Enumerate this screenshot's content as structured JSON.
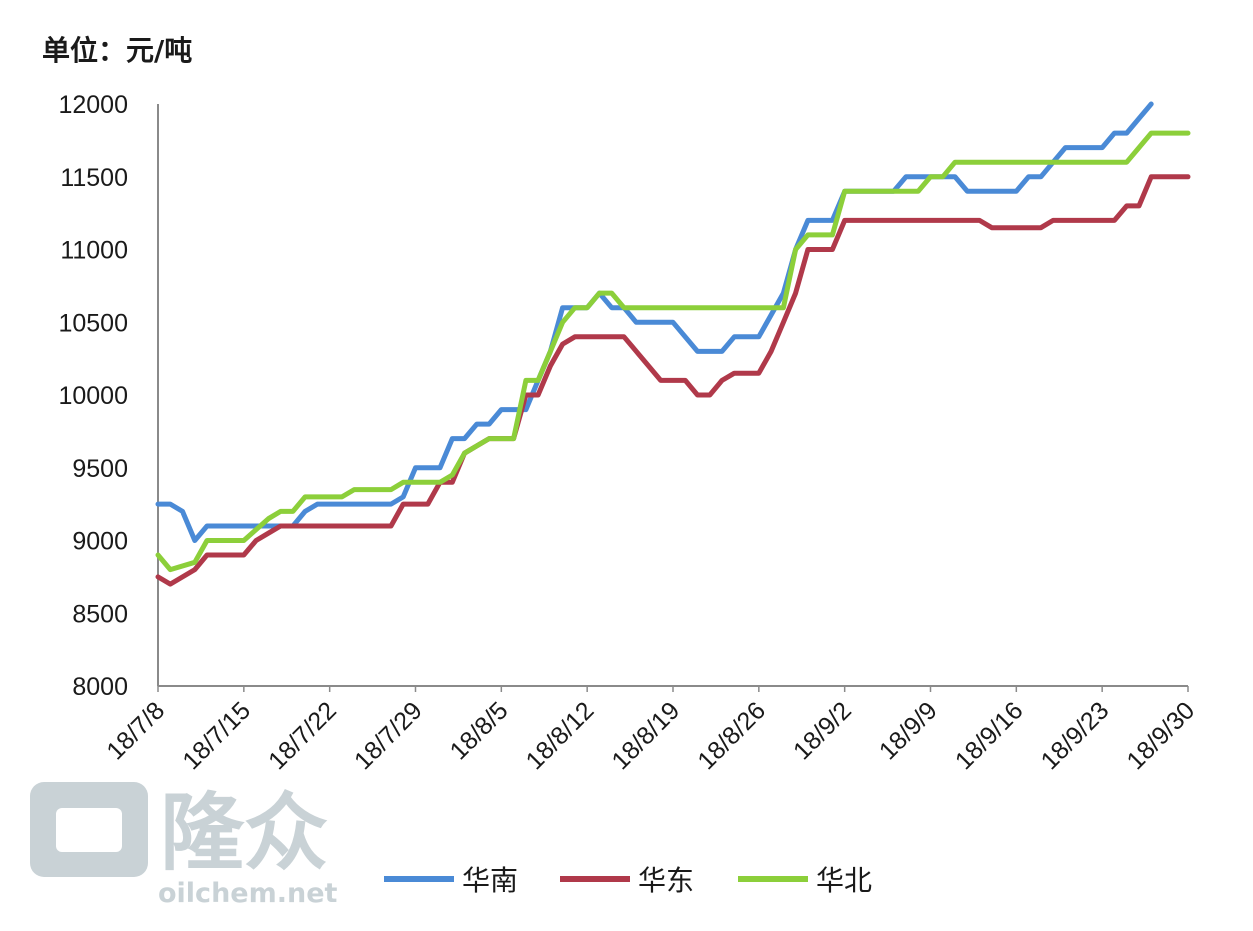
{
  "unit_label": "单位：元/吨",
  "watermark": {
    "brand": "隆众",
    "site": "oilchem.net"
  },
  "colors": {
    "华南": "#4a8ad6",
    "华东": "#b0394a",
    "华北": "#8ccf3a",
    "axis": "#8a8a8a"
  },
  "chart_data": {
    "type": "line",
    "title": "",
    "xlabel": "",
    "ylabel": "单位：元/吨",
    "ylim": [
      8000,
      12000
    ],
    "yticks": [
      8000,
      8500,
      9000,
      9500,
      10000,
      10500,
      11000,
      11500,
      12000
    ],
    "x_range": [
      "18/7/8",
      "18/9/30"
    ],
    "xtick_labels": [
      "18/7/8",
      "18/7/15",
      "18/7/22",
      "18/7/29",
      "18/8/5",
      "18/8/12",
      "18/8/19",
      "18/8/26",
      "18/9/2",
      "18/9/9",
      "18/9/16",
      "18/9/23",
      "18/9/30"
    ],
    "grid": false,
    "legend_position": "bottom",
    "series": [
      {
        "name": "华南",
        "points": [
          [
            "18/7/8",
            9250
          ],
          [
            "18/7/9",
            9250
          ],
          [
            "18/7/10",
            9200
          ],
          [
            "18/7/11",
            9000
          ],
          [
            "18/7/12",
            9100
          ],
          [
            "18/7/19",
            9100
          ],
          [
            "18/7/20",
            9200
          ],
          [
            "18/7/21",
            9250
          ],
          [
            "18/7/27",
            9250
          ],
          [
            "18/7/28",
            9300
          ],
          [
            "18/7/29",
            9500
          ],
          [
            "18/7/31",
            9500
          ],
          [
            "18/8/1",
            9700
          ],
          [
            "18/8/2",
            9700
          ],
          [
            "18/8/3",
            9800
          ],
          [
            "18/8/4",
            9800
          ],
          [
            "18/8/5",
            9900
          ],
          [
            "18/8/7",
            9900
          ],
          [
            "18/8/8",
            10100
          ],
          [
            "18/8/9",
            10300
          ],
          [
            "18/8/10",
            10600
          ],
          [
            "18/8/12",
            10600
          ],
          [
            "18/8/13",
            10700
          ],
          [
            "18/8/14",
            10600
          ],
          [
            "18/8/15",
            10600
          ],
          [
            "18/8/16",
            10500
          ],
          [
            "18/8/19",
            10500
          ],
          [
            "18/8/21",
            10300
          ],
          [
            "18/8/23",
            10300
          ],
          [
            "18/8/24",
            10400
          ],
          [
            "18/8/26",
            10400
          ],
          [
            "18/8/28",
            10700
          ],
          [
            "18/8/29",
            11000
          ],
          [
            "18/8/30",
            11200
          ],
          [
            "18/9/1",
            11200
          ],
          [
            "18/9/2",
            11400
          ],
          [
            "18/9/6",
            11400
          ],
          [
            "18/9/7",
            11500
          ],
          [
            "18/9/11",
            11500
          ],
          [
            "18/9/12",
            11400
          ],
          [
            "18/9/16",
            11400
          ],
          [
            "18/9/17",
            11500
          ],
          [
            "18/9/18",
            11500
          ],
          [
            "18/9/19",
            11600
          ],
          [
            "18/9/20",
            11700
          ],
          [
            "18/9/23",
            11700
          ],
          [
            "18/9/24",
            11800
          ],
          [
            "18/9/25",
            11800
          ],
          [
            "18/9/27",
            12000
          ]
        ]
      },
      {
        "name": "华东",
        "points": [
          [
            "18/7/8",
            8750
          ],
          [
            "18/7/9",
            8700
          ],
          [
            "18/7/11",
            8800
          ],
          [
            "18/7/12",
            8900
          ],
          [
            "18/7/15",
            8900
          ],
          [
            "18/7/16",
            9000
          ],
          [
            "18/7/17",
            9050
          ],
          [
            "18/7/18",
            9100
          ],
          [
            "18/7/27",
            9100
          ],
          [
            "18/7/28",
            9250
          ],
          [
            "18/7/30",
            9250
          ],
          [
            "18/7/31",
            9400
          ],
          [
            "18/8/1",
            9400
          ],
          [
            "18/8/2",
            9600
          ],
          [
            "18/8/3",
            9650
          ],
          [
            "18/8/4",
            9700
          ],
          [
            "18/8/6",
            9700
          ],
          [
            "18/8/7",
            10000
          ],
          [
            "18/8/8",
            10000
          ],
          [
            "18/8/9",
            10200
          ],
          [
            "18/8/10",
            10350
          ],
          [
            "18/8/11",
            10400
          ],
          [
            "18/8/15",
            10400
          ],
          [
            "18/8/17",
            10200
          ],
          [
            "18/8/18",
            10100
          ],
          [
            "18/8/20",
            10100
          ],
          [
            "18/8/21",
            10000
          ],
          [
            "18/8/22",
            10000
          ],
          [
            "18/8/23",
            10100
          ],
          [
            "18/8/24",
            10150
          ],
          [
            "18/8/26",
            10150
          ],
          [
            "18/8/27",
            10300
          ],
          [
            "18/8/28",
            10500
          ],
          [
            "18/8/29",
            10700
          ],
          [
            "18/8/30",
            11000
          ],
          [
            "18/9/1",
            11000
          ],
          [
            "18/9/2",
            11200
          ],
          [
            "18/9/13",
            11200
          ],
          [
            "18/9/14",
            11150
          ],
          [
            "18/9/18",
            11150
          ],
          [
            "18/9/19",
            11200
          ],
          [
            "18/9/24",
            11200
          ],
          [
            "18/9/25",
            11300
          ],
          [
            "18/9/26",
            11300
          ],
          [
            "18/9/27",
            11500
          ],
          [
            "18/9/30",
            11500
          ]
        ]
      },
      {
        "name": "华北",
        "points": [
          [
            "18/7/8",
            8900
          ],
          [
            "18/7/9",
            8800
          ],
          [
            "18/7/11",
            8850
          ],
          [
            "18/7/12",
            9000
          ],
          [
            "18/7/15",
            9000
          ],
          [
            "18/7/17",
            9150
          ],
          [
            "18/7/18",
            9200
          ],
          [
            "18/7/19",
            9200
          ],
          [
            "18/7/20",
            9300
          ],
          [
            "18/7/23",
            9300
          ],
          [
            "18/7/24",
            9350
          ],
          [
            "18/7/27",
            9350
          ],
          [
            "18/7/28",
            9400
          ],
          [
            "18/7/31",
            9400
          ],
          [
            "18/8/1",
            9450
          ],
          [
            "18/8/2",
            9600
          ],
          [
            "18/8/3",
            9650
          ],
          [
            "18/8/4",
            9700
          ],
          [
            "18/8/6",
            9700
          ],
          [
            "18/8/7",
            10100
          ],
          [
            "18/8/8",
            10100
          ],
          [
            "18/8/9",
            10300
          ],
          [
            "18/8/10",
            10500
          ],
          [
            "18/8/11",
            10600
          ],
          [
            "18/8/12",
            10600
          ],
          [
            "18/8/13",
            10700
          ],
          [
            "18/8/14",
            10700
          ],
          [
            "18/8/15",
            10600
          ],
          [
            "18/8/28",
            10600
          ],
          [
            "18/8/29",
            11000
          ],
          [
            "18/8/30",
            11100
          ],
          [
            "18/9/1",
            11100
          ],
          [
            "18/9/2",
            11400
          ],
          [
            "18/9/8",
            11400
          ],
          [
            "18/9/9",
            11500
          ],
          [
            "18/9/10",
            11500
          ],
          [
            "18/9/11",
            11600
          ],
          [
            "18/9/25",
            11600
          ],
          [
            "18/9/26",
            11700
          ],
          [
            "18/9/27",
            11800
          ],
          [
            "18/9/30",
            11800
          ]
        ]
      }
    ]
  }
}
